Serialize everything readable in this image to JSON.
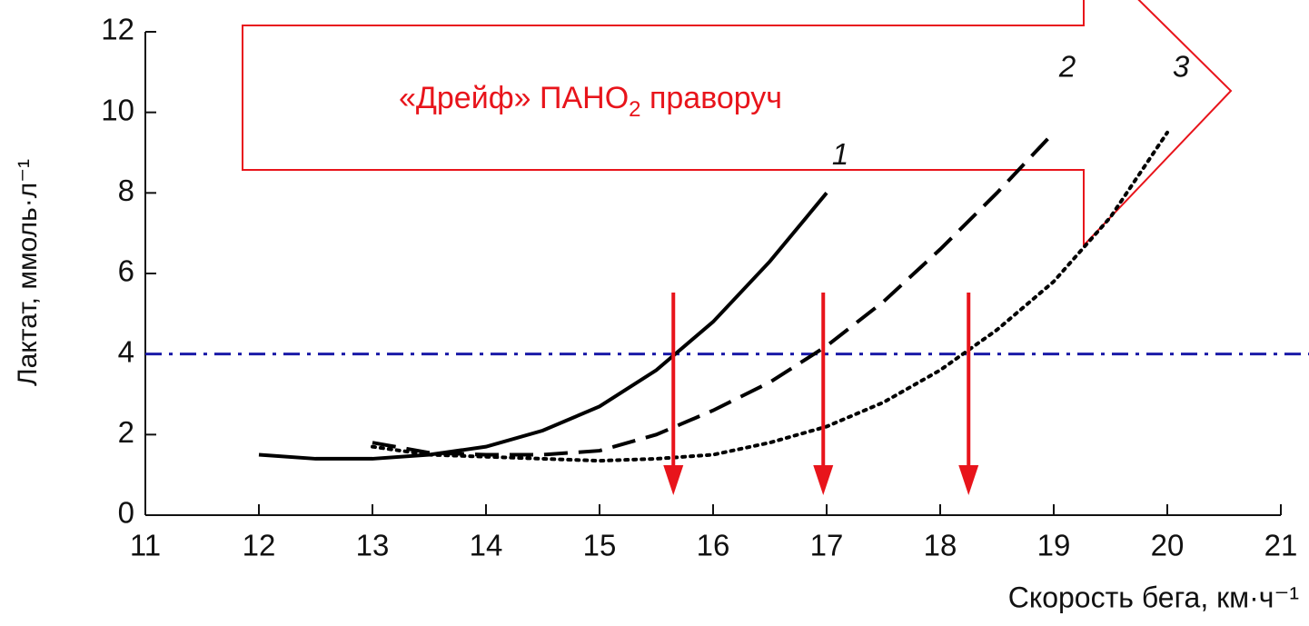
{
  "chart_data": {
    "type": "line",
    "y_label": "Лактат, ммоль·л⁻¹",
    "x_label": "Скорость бега, км·ч⁻¹",
    "annotation": [
      "«Дрейф» ПАНО",
      "2",
      " праворуч"
    ],
    "xlim": [
      11,
      21
    ],
    "xticks": [
      11,
      12,
      13,
      14,
      15,
      16,
      17,
      18,
      19,
      20,
      21
    ],
    "ylim": [
      0,
      12
    ],
    "yticks": [
      0,
      2,
      4,
      6,
      8,
      10,
      12
    ],
    "threshold": 4,
    "threshold_color": "#1a1aa8",
    "arrows_x": [
      15.65,
      16.97,
      18.25
    ],
    "arrow_color": "#e8141b",
    "series": [
      {
        "name": "1",
        "color": "#000000",
        "dash": "solid",
        "x": [
          12,
          12.5,
          13,
          13.5,
          14,
          14.5,
          15,
          15.5,
          16,
          16.5,
          17
        ],
        "values": [
          1.5,
          1.4,
          1.4,
          1.5,
          1.7,
          2.1,
          2.7,
          3.6,
          4.8,
          6.3,
          8.0
        ]
      },
      {
        "name": "2",
        "color": "#000000",
        "dash": "dashed",
        "x": [
          13,
          13.5,
          14,
          14.5,
          15,
          15.5,
          16,
          16.5,
          17,
          17.5,
          18,
          18.5,
          19
        ],
        "values": [
          1.8,
          1.55,
          1.5,
          1.5,
          1.6,
          2.0,
          2.6,
          3.3,
          4.2,
          5.3,
          6.6,
          8.0,
          9.5
        ]
      },
      {
        "name": "3",
        "color": "#000000",
        "dash": "dotted",
        "x": [
          13,
          13.5,
          14,
          14.5,
          15,
          15.5,
          16,
          16.5,
          17,
          17.5,
          18,
          18.5,
          19,
          19.5,
          20
        ],
        "values": [
          1.7,
          1.5,
          1.45,
          1.4,
          1.35,
          1.4,
          1.5,
          1.8,
          2.2,
          2.8,
          3.6,
          4.6,
          5.8,
          7.4,
          9.5
        ]
      }
    ]
  }
}
